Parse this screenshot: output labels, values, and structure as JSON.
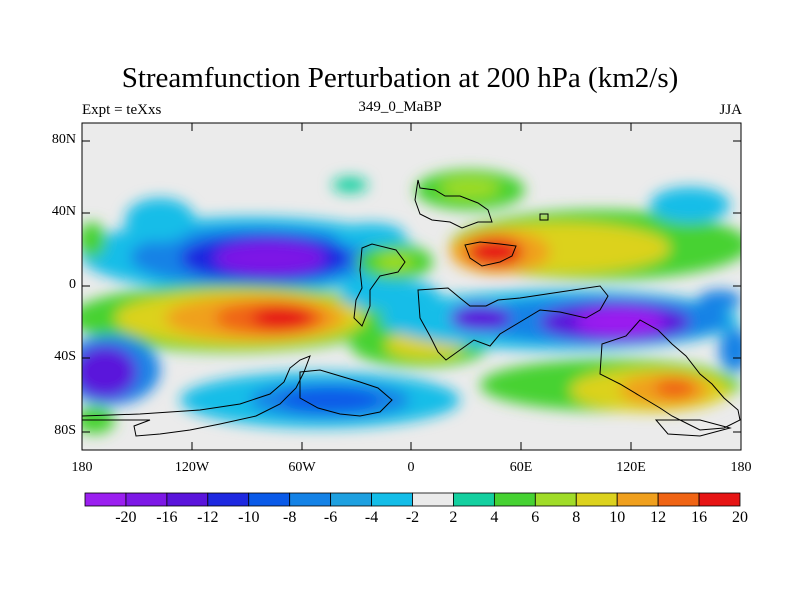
{
  "title": "Streamfunction Perturbation at 200 hPa (km2/s)",
  "left_label": "Expt = teXxs",
  "center_label": "349_0_MaBP",
  "right_label": "JJA",
  "y_ticks": [
    "80N",
    "40N",
    "0",
    "40S",
    "80S"
  ],
  "x_ticks": [
    "180",
    "120W",
    "60W",
    "0",
    "60E",
    "120E",
    "180"
  ],
  "colorbar": {
    "labels": [
      "-20",
      "-16",
      "-12",
      "-10",
      "-8",
      "-6",
      "-4",
      "-2",
      "2",
      "4",
      "6",
      "8",
      "10",
      "12",
      "16",
      "20"
    ],
    "colors": [
      "#9b1ff0",
      "#7d18e6",
      "#5a14db",
      "#1e28e0",
      "#0a5ae8",
      "#1482e6",
      "#1ea0e0",
      "#14bde8",
      "#ebebeb",
      "#14d0a0",
      "#46d232",
      "#a0dc28",
      "#dcd21e",
      "#f0a01e",
      "#f06414",
      "#e61414"
    ]
  },
  "colors": {
    "background": "#ebebeb",
    "coast": "#000000"
  }
}
